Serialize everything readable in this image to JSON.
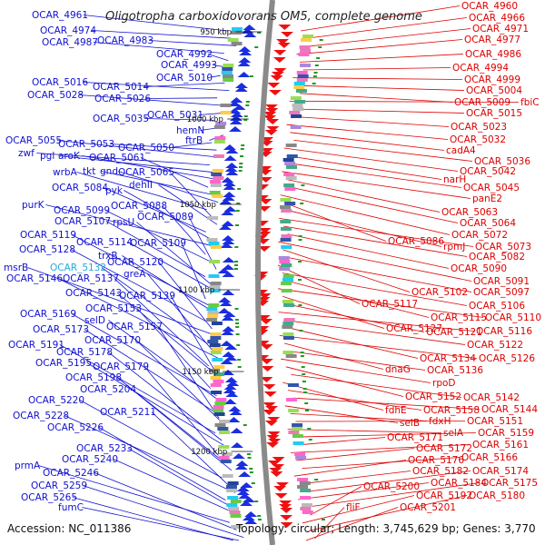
{
  "title": "Oligotropha carboxidovorans OM5, complete genome",
  "accession": "Accession: NC_011386",
  "topology": "Topology: circular; Length: 3,745,629 bp; Genes: 3,770",
  "colors": {
    "left_label": "#1010d0",
    "right_label": "#dd0000",
    "highlight_label": "#22aadd",
    "backbone": "#8a8a8a"
  },
  "scale_labels": [
    "950 kbp",
    "1000 kbp",
    "1050 kbp",
    "1100 kbp",
    "1150 kbp",
    "1200 kbp"
  ],
  "left_labels": [
    "OCAR_4961",
    "OCAR_4974",
    "OCAR_4983",
    "OCAR_4987",
    "OCAR_4992",
    "OCAR_4993",
    "OCAR_5010",
    "OCAR_5014",
    "OCAR_5016",
    "OCAR_5026",
    "OCAR_5028",
    "OCAR_5031",
    "OCAR_5035",
    "hemN",
    "ftrB",
    "OCAR_5050",
    "OCAR_5053",
    "OCAR_5055",
    "zwf",
    "pgl",
    "aroK",
    "OCAR_5061",
    "tkt",
    "gnd",
    "wrbA",
    "OCAR_5065",
    "dehII",
    "OCAR_5084",
    "pyk",
    "purK",
    "OCAR_5088",
    "OCAR_5099",
    "OCAR_5089",
    "OCAR_5107",
    "rpsU",
    "OCAR_5114",
    "OCAR_5109",
    "OCAR_5119",
    "trxB",
    "OCAR_5128",
    "OCAR_5120",
    "msrB",
    "OCAR_5132",
    "greA",
    "OCAR_5146",
    "OCAR_5137",
    "OCAR_5143",
    "OCAR_5139",
    "OCAR_5153",
    "OCAR_5169",
    "selD",
    "OCAR_5173",
    "OCAR_5157",
    "OCAR_5170",
    "OCAR_5191",
    "OCAR_5178",
    "OCAR_5195",
    "OCAR_5179",
    "OCAR_5198",
    "OCAR_5204",
    "OCAR_5220",
    "OCAR_5211",
    "OCAR_5228",
    "OCAR_5226",
    "OCAR_5233",
    "OCAR_5240",
    "prmA",
    "OCAR_5246",
    "OCAR_5259",
    "OCAR_5265",
    "fumC"
  ],
  "right_labels": [
    "OCAR_4960",
    "OCAR_4966",
    "OCAR_4971",
    "OCAR_4977",
    "OCAR_4986",
    "OCAR_4994",
    "OCAR_4999",
    "OCAR_5004",
    "OCAR_5009",
    "fbiC",
    "OCAR_5015",
    "OCAR_5023",
    "OCAR_5032",
    "cadA4",
    "OCAR_5036",
    "OCAR_5042",
    "narH",
    "OCAR_5045",
    "panE2",
    "OCAR_5063",
    "OCAR_5064",
    "OCAR_5072",
    "OCAR_5086",
    "rpmJ",
    "OCAR_5073",
    "OCAR_5082",
    "OCAR_5090",
    "OCAR_5091",
    "OCAR_5102",
    "OCAR_5097",
    "OCAR_5117",
    "OCAR_5106",
    "OCAR_5115",
    "OCAR_5110",
    "OCAR_5127",
    "OCAR_5121",
    "OCAR_5116",
    "OCAR_5122",
    "OCAR_5134",
    "OCAR_5126",
    "dnaG",
    "OCAR_5136",
    "rpoD",
    "OCAR_5152",
    "OCAR_5142",
    "fdhE",
    "OCAR_5158",
    "OCAR_5144",
    "selB",
    "fdxH",
    "OCAR_5151",
    "selA",
    "OCAR_5159",
    "OCAR_5171",
    "OCAR_5161",
    "OCAR_5172",
    "OCAR_5166",
    "OCAR_5176",
    "OCAR_5182",
    "OCAR_5174",
    "OCAR_5184",
    "OCAR_5175",
    "OCAR_5200",
    "OCAR_5192",
    "OCAR_5180",
    "fliF",
    "OCAR_5201"
  ]
}
